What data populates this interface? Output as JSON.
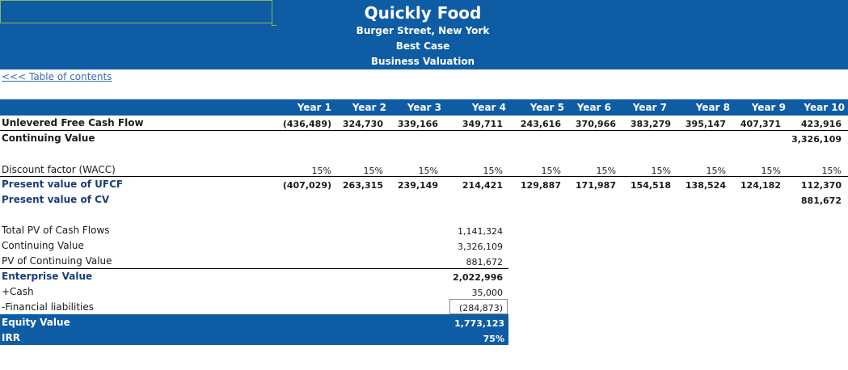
{
  "header": {
    "company": "Quickly Food",
    "address": "Burger Street, New York",
    "scenario": "Best Case",
    "title": "Business Valuation"
  },
  "nav": {
    "toc_link": "<<< Table of contents"
  },
  "years": [
    "Year 1",
    "Year 2",
    "Year 3",
    "Year 4",
    "Year 5",
    "Year 6",
    "Year 7",
    "Year 8",
    "Year 9",
    "Year 10"
  ],
  "rows": {
    "ufcf": {
      "label": "Unlevered Free Cash Flow",
      "values": [
        "(436,489)",
        "324,730",
        "339,166",
        "349,711",
        "243,616",
        "370,966",
        "383,279",
        "395,147",
        "407,371",
        "423,916"
      ]
    },
    "cv": {
      "label": "Continuing Value",
      "value": "3,326,109"
    },
    "discount": {
      "label": "Discount factor (WACC)",
      "values": [
        "15%",
        "15%",
        "15%",
        "15%",
        "15%",
        "15%",
        "15%",
        "15%",
        "15%",
        "15%"
      ]
    },
    "pv_ufcf": {
      "label": "Present value of UFCF",
      "values": [
        "(407,029)",
        "263,315",
        "239,149",
        "214,421",
        "129,887",
        "171,987",
        "154,518",
        "138,524",
        "124,182",
        "112,370"
      ]
    },
    "pv_cv": {
      "label": "Present value of CV",
      "value": "881,672"
    }
  },
  "summary": [
    {
      "label": "Total PV of Cash Flows",
      "value": "1,141,324"
    },
    {
      "label": "Continuing Value",
      "value": "3,326,109"
    },
    {
      "label": "PV of Continuing Value",
      "value": "881,672"
    },
    {
      "label": "Enterprise Value",
      "value": "2,022,996"
    },
    {
      "label": "+Cash",
      "value": "35,000"
    },
    {
      "label": "-Financial liabilities",
      "value": "(284,873)"
    },
    {
      "label": "Equity Value",
      "value": "1,773,123"
    },
    {
      "label": "IRR",
      "value": "75%"
    }
  ],
  "colors": {
    "band": "#0e5ca4",
    "link": "#3c6cb4",
    "name_box_border": "#8fb94a"
  }
}
